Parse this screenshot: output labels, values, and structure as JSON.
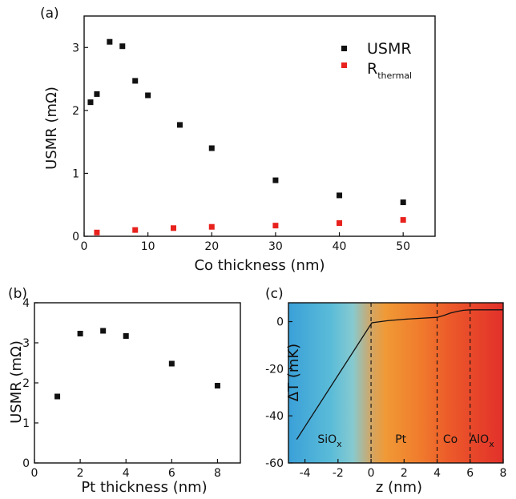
{
  "chart_data": [
    {
      "panel": "(a)",
      "type": "scatter",
      "xlabel": "Co thickness (nm)",
      "ylabel": "USMR (mΩ)",
      "xlim": [
        0,
        55
      ],
      "ylim": [
        0,
        3.5
      ],
      "xticks": [
        0,
        10,
        20,
        30,
        40,
        50
      ],
      "yticks": [
        0,
        1,
        2,
        3
      ],
      "legend": "top-right",
      "series": [
        {
          "name": "USMR",
          "color": "#111111",
          "points": [
            [
              1,
              2.13
            ],
            [
              2,
              2.26
            ],
            [
              4,
              3.09
            ],
            [
              6,
              3.02
            ],
            [
              8,
              2.47
            ],
            [
              10,
              2.24
            ],
            [
              15,
              1.77
            ],
            [
              20,
              1.4
            ],
            [
              30,
              0.89
            ],
            [
              40,
              0.65
            ],
            [
              50,
              0.54
            ]
          ]
        },
        {
          "name": "R",
          "name_sub": "thermal",
          "color": "#e8211d",
          "points": [
            [
              2,
              0.06
            ],
            [
              8,
              0.1
            ],
            [
              14,
              0.13
            ],
            [
              20,
              0.15
            ],
            [
              30,
              0.17
            ],
            [
              40,
              0.21
            ],
            [
              50,
              0.26
            ]
          ]
        }
      ]
    },
    {
      "panel": "(b)",
      "type": "scatter",
      "xlabel": "Pt thickness (nm)",
      "ylabel": "USMR (mΩ)",
      "xlim": [
        0,
        9
      ],
      "ylim": [
        0,
        4
      ],
      "xticks": [
        0,
        2,
        4,
        6,
        8
      ],
      "yticks": [
        0,
        1,
        2,
        3,
        4
      ],
      "series": [
        {
          "color": "#111111",
          "points": [
            [
              1,
              1.66
            ],
            [
              2,
              3.23
            ],
            [
              3,
              3.3
            ],
            [
              4,
              3.17
            ],
            [
              6,
              2.48
            ],
            [
              8,
              1.93
            ]
          ]
        }
      ]
    },
    {
      "panel": "(c)",
      "type": "line",
      "xlabel": "z (nm)",
      "ylabel": "ΔT (mK)",
      "xlim": [
        -5,
        8
      ],
      "ylim": [
        -60,
        8
      ],
      "xticks": [
        -4,
        -2,
        0,
        2,
        4,
        6,
        8
      ],
      "yticks": [
        -60,
        -40,
        -20,
        0
      ],
      "boundaries": [
        0,
        4,
        6
      ],
      "regions": [
        {
          "label": "SiO",
          "sub": "x",
          "x": -2.5
        },
        {
          "label": "Pt",
          "sub": "",
          "x": 1.8
        },
        {
          "label": "Co",
          "sub": "",
          "x": 4.8
        },
        {
          "label": "AlO",
          "sub": "x",
          "x": 6.7
        }
      ],
      "line": [
        [
          -4.5,
          -50
        ],
        [
          0,
          -1
        ],
        [
          0.05,
          -0.5
        ],
        [
          1,
          0.4
        ],
        [
          2,
          1
        ],
        [
          3,
          1.4
        ],
        [
          4,
          1.8
        ],
        [
          4.4,
          2.6
        ],
        [
          4.8,
          3.6
        ],
        [
          5.2,
          4.3
        ],
        [
          5.6,
          4.8
        ],
        [
          6,
          5
        ],
        [
          8,
          5
        ]
      ]
    }
  ]
}
